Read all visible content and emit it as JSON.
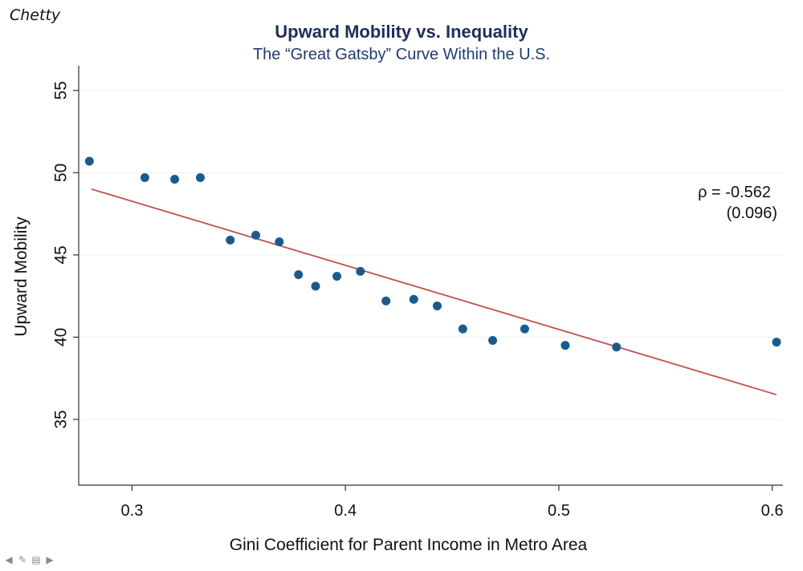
{
  "header": {
    "author": "Chetty",
    "title": "Upward Mobility vs. Inequality",
    "subtitle": "The “Great Gatsby” Curve Within the U.S."
  },
  "colors": {
    "title": "#1f2d5c",
    "subtitle": "#1f3b73",
    "points": "#1b5a8c",
    "fit_line": "#c0504d",
    "axis": "#333333"
  },
  "chart_data": {
    "type": "scatter",
    "title": "Upward Mobility vs. Inequality",
    "subtitle": "The “Great Gatsby” Curve Within the U.S.",
    "xlabel": "Gini Coefficient for Parent Income in Metro Area",
    "ylabel": "Upward Mobility",
    "xlim": [
      0.275,
      0.605
    ],
    "ylim": [
      31,
      56.5
    ],
    "xticks": [
      0.3,
      0.4,
      0.5,
      0.6
    ],
    "xtick_labels": [
      "0.3",
      "0.4",
      "0.5",
      "0.6"
    ],
    "yticks": [
      35,
      40,
      45,
      50,
      55
    ],
    "ytick_labels": [
      "35",
      "40",
      "45",
      "50",
      "55"
    ],
    "points": [
      {
        "x": 0.28,
        "y": 50.7
      },
      {
        "x": 0.306,
        "y": 49.7
      },
      {
        "x": 0.32,
        "y": 49.6
      },
      {
        "x": 0.332,
        "y": 49.7
      },
      {
        "x": 0.346,
        "y": 45.9
      },
      {
        "x": 0.358,
        "y": 46.2
      },
      {
        "x": 0.369,
        "y": 45.8
      },
      {
        "x": 0.378,
        "y": 43.8
      },
      {
        "x": 0.386,
        "y": 43.1
      },
      {
        "x": 0.396,
        "y": 43.7
      },
      {
        "x": 0.407,
        "y": 44.0
      },
      {
        "x": 0.419,
        "y": 42.2
      },
      {
        "x": 0.432,
        "y": 42.3
      },
      {
        "x": 0.443,
        "y": 41.9
      },
      {
        "x": 0.455,
        "y": 40.5
      },
      {
        "x": 0.469,
        "y": 39.8
      },
      {
        "x": 0.484,
        "y": 40.5
      },
      {
        "x": 0.503,
        "y": 39.5
      },
      {
        "x": 0.527,
        "y": 39.4
      },
      {
        "x": 0.602,
        "y": 39.7
      }
    ],
    "fit_line": {
      "x": [
        0.281,
        0.602
      ],
      "y": [
        49.0,
        36.5
      ]
    },
    "annotation": {
      "line1": "ρ = -0.562",
      "line2": "(0.096)"
    }
  },
  "nav_icons": [
    "arrow-left-icon",
    "pen-icon",
    "menu-icon",
    "arrow-right-icon"
  ]
}
